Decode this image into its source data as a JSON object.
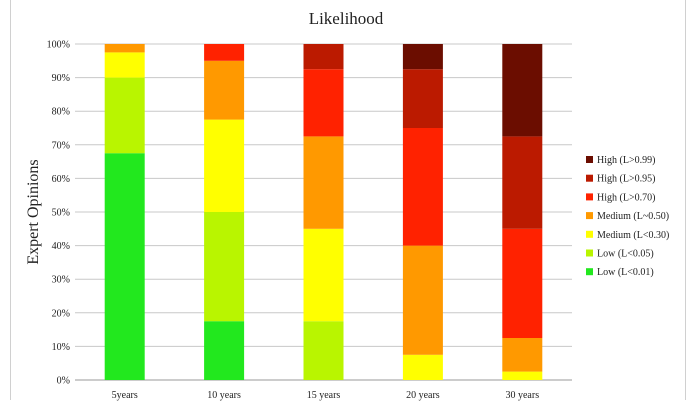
{
  "chart_data": {
    "type": "bar",
    "stacked": true,
    "title": "Likelihood",
    "ylabel": "Expert Opinions",
    "xlabel": "",
    "ylim": [
      0,
      100
    ],
    "y_ticks": [
      "0%",
      "10%",
      "20%",
      "30%",
      "40%",
      "50%",
      "60%",
      "70%",
      "80%",
      "90%",
      "100%"
    ],
    "grid": true,
    "legend_position": "right",
    "categories": [
      "5years",
      "10 years",
      "15 years",
      "20 years",
      "30 years"
    ],
    "series": [
      {
        "name": "Low (L<0.01)",
        "color": "#22e81e",
        "values": [
          67.5,
          17.5,
          0,
          0,
          0
        ]
      },
      {
        "name": "Low (L<0.05)",
        "color": "#b9f500",
        "values": [
          22.5,
          32.5,
          17.5,
          0,
          0
        ]
      },
      {
        "name": "Medium (L<0.30)",
        "color": "#ffff00",
        "values": [
          7.5,
          27.5,
          27.5,
          7.5,
          2.5
        ]
      },
      {
        "name": "Medium (L~0.50)",
        "color": "#ff9900",
        "values": [
          2.5,
          17.5,
          27.5,
          32.5,
          10
        ]
      },
      {
        "name": "High (L>0.70)",
        "color": "#ff2200",
        "values": [
          0,
          5,
          20,
          35,
          32.5
        ]
      },
      {
        "name": "High (L>0.95)",
        "color": "#bb1a00",
        "values": [
          0,
          0,
          7.5,
          17.5,
          27.5
        ]
      },
      {
        "name": "High (L>0.99)",
        "color": "#6b0d00",
        "values": [
          0,
          0,
          0,
          7.5,
          27.5
        ]
      }
    ]
  }
}
